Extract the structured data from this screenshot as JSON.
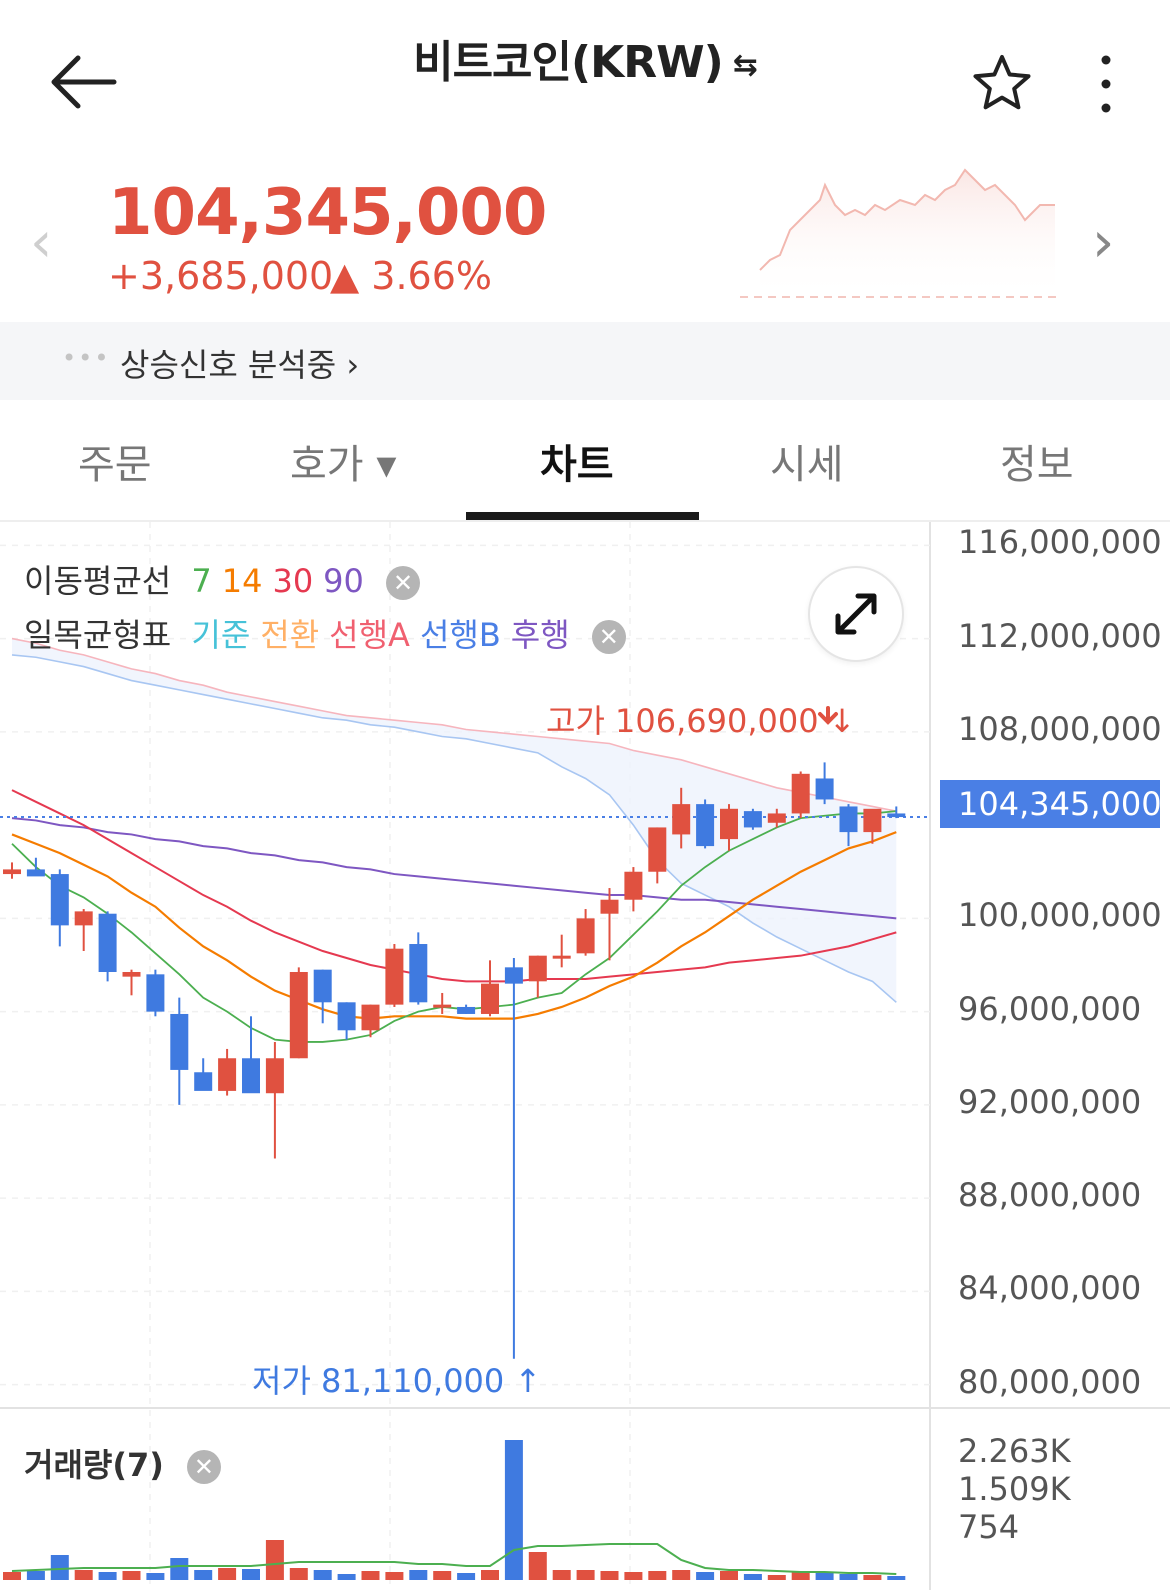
{
  "header": {
    "title": "비트코인(KRW)",
    "swap_icon": "⇆",
    "back_icon": "arrow-left-icon",
    "star_icon": "star-icon",
    "more_icon": "more-vertical-icon"
  },
  "price": {
    "current": "104,345,000",
    "change": "+3,685,000",
    "change_pct": "▲ 3.66%",
    "color_up": "#e05140"
  },
  "signal": {
    "dots": "•••",
    "text": "상승신호 분석중 ›"
  },
  "tabs": [
    {
      "label": "주문",
      "active": false
    },
    {
      "label": "호가 ▾",
      "active": false
    },
    {
      "label": "차트",
      "active": true
    },
    {
      "label": "시세",
      "active": false
    },
    {
      "label": "정보",
      "active": false
    }
  ],
  "legend": {
    "ma_label": "이동평균선",
    "ma": [
      {
        "label": "7",
        "color": "#4caf50"
      },
      {
        "label": "14",
        "color": "#f57c00"
      },
      {
        "label": "30",
        "color": "#e53950"
      },
      {
        "label": "90",
        "color": "#7e57c2"
      }
    ],
    "ichimoku_label": "일목균형표",
    "ichimoku": [
      {
        "label": "기준",
        "color": "#46c2d8"
      },
      {
        "label": "전환",
        "color": "#ffb066"
      },
      {
        "label": "선행A",
        "color": "#f06070"
      },
      {
        "label": "선행B",
        "color": "#4a7fe5"
      },
      {
        "label": "후행",
        "color": "#7e57c2"
      }
    ],
    "close": "✕"
  },
  "annotations": {
    "high": "고가 106,690,000 ↓",
    "low": "저가 81,110,000 ↑",
    "current_price": "104,345,000"
  },
  "volume": {
    "title": "거래량(7)",
    "close": "✕",
    "axis": [
      "2.263K",
      "1.509K",
      "754"
    ]
  },
  "chart_data": {
    "type": "candlestick",
    "y_ticks": [
      "116,000,000",
      "112,000,000",
      "108,000,000",
      "100,000,000",
      "96,000,000",
      "92,000,000",
      "88,000,000",
      "84,000,000",
      "80,000,000"
    ],
    "ylim": [
      79000000,
      117000000
    ],
    "up_color": "#e05140",
    "down_color": "#3f7ae0",
    "candles": [
      [
        101900000,
        102400000,
        101700000,
        102100000
      ],
      [
        102100000,
        102600000,
        101900000,
        101800000
      ],
      [
        101900000,
        102100000,
        98800000,
        99700000
      ],
      [
        99700000,
        100400000,
        98600000,
        100300000
      ],
      [
        100200000,
        100300000,
        97300000,
        97700000
      ],
      [
        97500000,
        97800000,
        96700000,
        97700000
      ],
      [
        97600000,
        97800000,
        95800000,
        96000000
      ],
      [
        95900000,
        96600000,
        92000000,
        93500000
      ],
      [
        93400000,
        94000000,
        92800000,
        92600000
      ],
      [
        92600000,
        94400000,
        92400000,
        94000000
      ],
      [
        94000000,
        95800000,
        92600000,
        92500000
      ],
      [
        92500000,
        94700000,
        89700000,
        94000000
      ],
      [
        94000000,
        97900000,
        94000000,
        97700000
      ],
      [
        97800000,
        97800000,
        95500000,
        96400000
      ],
      [
        96400000,
        96400000,
        94800000,
        95200000
      ],
      [
        95200000,
        96300000,
        94900000,
        96300000
      ],
      [
        96300000,
        98900000,
        96200000,
        98700000
      ],
      [
        98900000,
        99400000,
        96300000,
        96400000
      ],
      [
        96200000,
        96800000,
        95900000,
        96300000
      ],
      [
        96200000,
        96300000,
        95900000,
        95900000
      ],
      [
        95900000,
        98200000,
        95800000,
        97200000
      ],
      [
        97900000,
        98300000,
        81110000,
        97200000
      ],
      [
        97300000,
        98400000,
        96600000,
        98400000
      ],
      [
        98400000,
        99300000,
        97900000,
        98400000
      ],
      [
        98500000,
        100400000,
        98400000,
        100000000
      ],
      [
        100200000,
        101300000,
        98200000,
        100800000
      ],
      [
        100800000,
        102200000,
        100300000,
        102000000
      ],
      [
        102000000,
        103900000,
        101500000,
        103900000
      ],
      [
        103600000,
        105600000,
        103000000,
        104900000
      ],
      [
        104900000,
        105100000,
        103000000,
        103100000
      ],
      [
        103400000,
        104900000,
        102900000,
        104700000
      ],
      [
        104600000,
        104700000,
        103800000,
        103900000
      ],
      [
        104100000,
        104700000,
        103900000,
        104500000
      ],
      [
        104500000,
        106300000,
        104300000,
        106200000
      ],
      [
        106000000,
        106690000,
        104900000,
        105100000
      ],
      [
        104800000,
        104900000,
        103100000,
        103700000
      ],
      [
        103700000,
        104600000,
        103200000,
        104700000
      ],
      [
        104500000,
        104800000,
        104300000,
        104345000
      ]
    ],
    "ma7": [
      103200000,
      102200000,
      101400000,
      100900000,
      100200000,
      99400000,
      98500000,
      97600000,
      96600000,
      96000000,
      95300000,
      94800000,
      94700000,
      94700000,
      94800000,
      95000000,
      95600000,
      96000000,
      96200000,
      96100000,
      96200000,
      96300000,
      96600000,
      96800000,
      97600000,
      98300000,
      99300000,
      100300000,
      101400000,
      102200000,
      102900000,
      103400000,
      103900000,
      104300000,
      104400000,
      104500000,
      104500000,
      104600000
    ],
    "ma14": [
      103600000,
      103200000,
      102800000,
      102300000,
      101800000,
      101100000,
      100500000,
      99600000,
      98800000,
      98200000,
      97500000,
      96900000,
      96500000,
      96100000,
      95800000,
      95700000,
      95800000,
      95800000,
      95800000,
      95700000,
      95700000,
      95700000,
      95900000,
      96200000,
      96600000,
      97100000,
      97500000,
      98100000,
      98800000,
      99400000,
      100100000,
      100800000,
      101400000,
      102000000,
      102500000,
      103000000,
      103300000,
      103700000
    ],
    "ma30": [
      105500000,
      105000000,
      104500000,
      104000000,
      103400000,
      102800000,
      102200000,
      101600000,
      101000000,
      100500000,
      99900000,
      99400000,
      99000000,
      98600000,
      98300000,
      98000000,
      97800000,
      97600000,
      97400000,
      97300000,
      97300000,
      97300000,
      97400000,
      97400000,
      97400000,
      97500000,
      97600000,
      97700000,
      97800000,
      97900000,
      98100000,
      98200000,
      98300000,
      98400000,
      98600000,
      98800000,
      99100000,
      99400000
    ],
    "ma90": [
      104300000,
      104200000,
      104000000,
      103900000,
      103700000,
      103600000,
      103400000,
      103300000,
      103100000,
      103000000,
      102800000,
      102700000,
      102500000,
      102400000,
      102200000,
      102100000,
      101900000,
      101800000,
      101700000,
      101600000,
      101500000,
      101400000,
      101300000,
      101200000,
      101100000,
      101000000,
      101000000,
      100900000,
      100800000,
      100800000,
      100700000,
      100600000,
      100500000,
      100400000,
      100300000,
      100200000,
      100100000,
      100000000
    ]
  }
}
